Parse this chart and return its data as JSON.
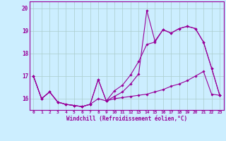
{
  "xlabel": "Windchill (Refroidissement éolien,°C)",
  "background_color": "#cceeff",
  "line_color": "#990099",
  "grid_color": "#aacccc",
  "xlim": [
    -0.5,
    23.5
  ],
  "ylim": [
    15.5,
    20.3
  ],
  "yticks": [
    16,
    17,
    18,
    19,
    20
  ],
  "xticks": [
    0,
    1,
    2,
    3,
    4,
    5,
    6,
    7,
    8,
    9,
    10,
    11,
    12,
    13,
    14,
    15,
    16,
    17,
    18,
    19,
    20,
    21,
    22,
    23
  ],
  "series1_x": [
    0,
    1,
    2,
    3,
    4,
    5,
    6,
    7,
    8,
    9,
    10,
    11,
    12,
    13,
    14,
    15,
    16,
    17,
    18,
    19,
    20,
    21,
    22,
    23
  ],
  "series1_y": [
    17.0,
    16.0,
    16.3,
    15.85,
    15.75,
    15.7,
    15.65,
    15.75,
    16.85,
    15.9,
    16.0,
    16.05,
    16.1,
    16.15,
    16.2,
    16.3,
    16.4,
    16.55,
    16.65,
    16.8,
    17.0,
    17.2,
    16.2,
    16.15
  ],
  "series2_x": [
    0,
    1,
    2,
    3,
    4,
    5,
    6,
    7,
    8,
    9,
    10,
    11,
    12,
    13,
    14,
    15,
    16,
    17,
    18,
    19,
    20,
    21,
    22,
    23
  ],
  "series2_y": [
    17.0,
    16.0,
    16.3,
    15.85,
    15.75,
    15.7,
    15.65,
    15.75,
    16.0,
    15.9,
    16.1,
    16.3,
    16.65,
    17.1,
    19.9,
    18.55,
    19.05,
    18.9,
    19.1,
    19.2,
    19.1,
    18.5,
    17.35,
    16.15
  ],
  "series3_x": [
    0,
    1,
    2,
    3,
    4,
    5,
    6,
    7,
    8,
    9,
    10,
    11,
    12,
    13,
    14,
    15,
    16,
    17,
    18,
    19,
    20,
    21,
    22,
    23
  ],
  "series3_y": [
    17.0,
    16.0,
    16.3,
    15.85,
    15.75,
    15.7,
    15.65,
    15.75,
    16.85,
    15.9,
    16.35,
    16.6,
    17.05,
    17.65,
    18.4,
    18.5,
    19.05,
    18.9,
    19.1,
    19.2,
    19.1,
    18.5,
    17.35,
    16.15
  ],
  "marker": "D",
  "markersize": 1.8,
  "linewidth": 0.8
}
